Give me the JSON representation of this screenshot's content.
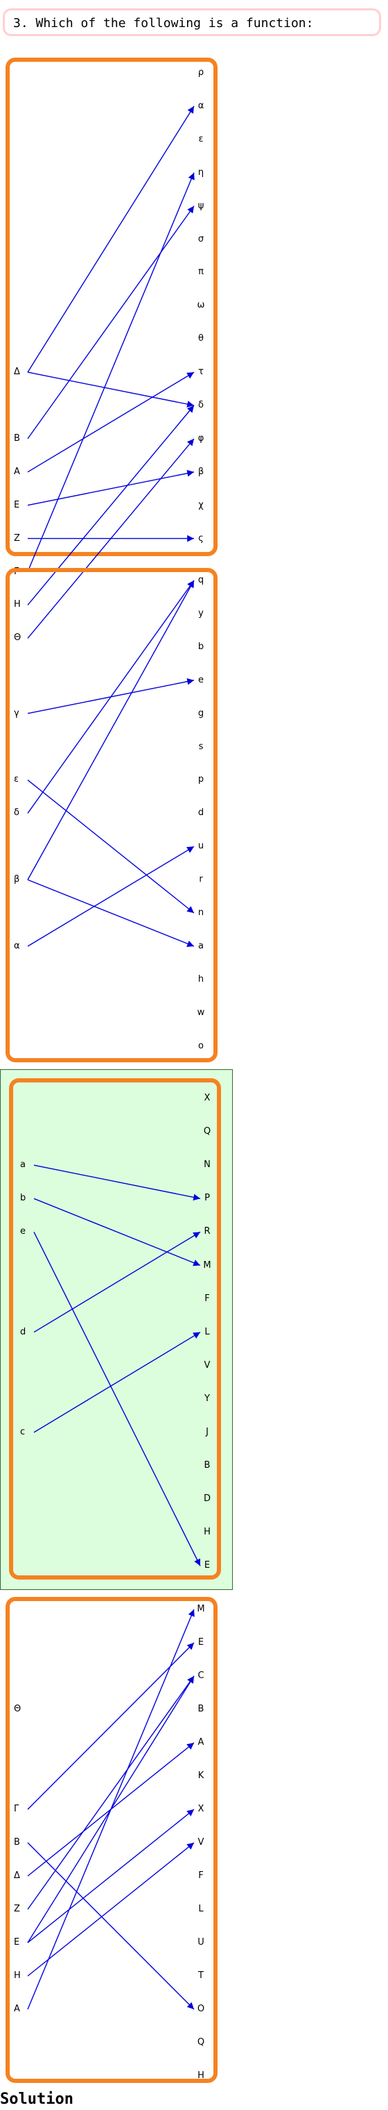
{
  "question": "3. Which of the following is a function:",
  "solution_label": "Solution",
  "colors": {
    "panel_border": "#f58220",
    "arrow": "#0000dd",
    "selected_bg": "#ddfedd",
    "selected_border": "#2e6b2e",
    "question_border": "#ffd0d0"
  },
  "options": [
    {
      "selected": false,
      "domain": [
        "Δ",
        "B",
        "A",
        "E",
        "Z",
        "Γ",
        "H",
        "Θ"
      ],
      "codomain": [
        "ρ",
        "α",
        "ε",
        "η",
        "ψ",
        "σ",
        "π",
        "ω",
        "θ",
        "τ",
        "δ",
        "φ",
        "β",
        "χ",
        "ς"
      ],
      "mappings": [
        [
          "Δ",
          "α"
        ],
        [
          "Δ",
          "δ"
        ],
        [
          "B",
          "ψ"
        ],
        [
          "A",
          "τ"
        ],
        [
          "E",
          "β"
        ],
        [
          "Z",
          "ς"
        ],
        [
          "Γ",
          "η"
        ],
        [
          "H",
          "δ"
        ],
        [
          "Θ",
          "φ"
        ]
      ]
    },
    {
      "selected": false,
      "domain": [
        "γ",
        "ε",
        "δ",
        "β",
        "α"
      ],
      "codomain": [
        "q",
        "y",
        "b",
        "e",
        "g",
        "s",
        "p",
        "d",
        "u",
        "r",
        "n",
        "a",
        "h",
        "w",
        "o"
      ],
      "mappings": [
        [
          "γ",
          "e"
        ],
        [
          "ε",
          "n"
        ],
        [
          "δ",
          "q"
        ],
        [
          "β",
          "q"
        ],
        [
          "β",
          "a"
        ],
        [
          "α",
          "u"
        ]
      ]
    },
    {
      "selected": true,
      "domain": [
        "a",
        "b",
        "e",
        "d",
        "c"
      ],
      "codomain": [
        "X",
        "Q",
        "N",
        "P",
        "R",
        "M",
        "F",
        "L",
        "V",
        "Y",
        "J",
        "B",
        "D",
        "H",
        "E"
      ],
      "mappings": [
        [
          "a",
          "P"
        ],
        [
          "b",
          "M"
        ],
        [
          "e",
          "E"
        ],
        [
          "d",
          "R"
        ],
        [
          "c",
          "L"
        ]
      ]
    },
    {
      "selected": false,
      "domain": [
        "Θ",
        "Γ",
        "B",
        "Δ",
        "Z",
        "E",
        "H",
        "A"
      ],
      "codomain": [
        "M",
        "E",
        "C",
        "B",
        "A",
        "K",
        "X",
        "V",
        "F",
        "L",
        "U",
        "T",
        "O",
        "Q",
        "H"
      ],
      "mappings": [
        [
          "Γ",
          "E"
        ],
        [
          "B",
          "O"
        ],
        [
          "Δ",
          "A"
        ],
        [
          "Z",
          "C"
        ],
        [
          "E",
          "C"
        ],
        [
          "E",
          "X"
        ],
        [
          "H",
          "V"
        ],
        [
          "A",
          "M"
        ]
      ]
    }
  ]
}
